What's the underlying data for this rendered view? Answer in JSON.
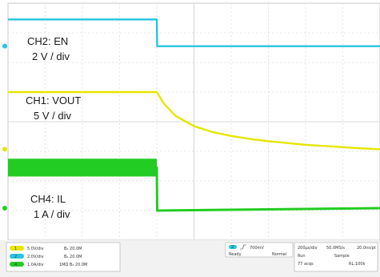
{
  "chart_data": {
    "type": "line",
    "title": "",
    "xlabel": "",
    "ylabel": "",
    "xlim": [
      0,
      10
    ],
    "ylim": [
      -4,
      4
    ],
    "grid": true,
    "series": [
      {
        "name": "CH2: EN",
        "color": "#27c4e0",
        "scale": "2 V / div",
        "marker": "2",
        "x": [
          0,
          4.0,
          4.01,
          10
        ],
        "y": [
          3.45,
          3.45,
          2.55,
          2.55
        ]
      },
      {
        "name": "CH1: VOUT",
        "color": "#e6e600",
        "scale": "5 V / div",
        "marker": "1",
        "x": [
          0,
          4.0,
          4.2,
          4.5,
          5.0,
          5.5,
          6.0,
          6.5,
          7.0,
          7.5,
          8.0,
          8.5,
          9.0,
          9.5,
          10
        ],
        "y": [
          1.0,
          1.0,
          0.6,
          0.2,
          -0.15,
          -0.35,
          -0.48,
          -0.58,
          -0.66,
          -0.72,
          -0.78,
          -0.82,
          -0.86,
          -0.9,
          -0.93
        ]
      },
      {
        "name": "CH4: IL",
        "color": "#22cc22",
        "scale": "1 A / div",
        "marker": "4",
        "x": [
          0,
          4.0,
          4.01,
          10
        ],
        "y": [
          -1.55,
          -1.55,
          -3.0,
          -2.92
        ]
      }
    ],
    "readouts": [
      {
        "ch": "1",
        "value": "5.0V/div",
        "bw": "B₄ 20.0M"
      },
      {
        "ch": "2",
        "value": "2.0V/div",
        "bw": "B₄ 20.0M"
      },
      {
        "ch": "4",
        "value": "1.0A/div",
        "bw": "1MΩ B₄ 20.0M"
      }
    ],
    "trigger": {
      "ch": "2",
      "level": "700mV",
      "state": "Ready",
      "mode": "Normal"
    },
    "acquisition": {
      "timebase": "200µs/div",
      "sample_rate": "50.0MS/s",
      "resolution": "20.0ns/pt",
      "line2_a": "Run",
      "line2_b": "Sample",
      "line3_a": "77 acqs",
      "line3_b": "RL:100k"
    }
  }
}
